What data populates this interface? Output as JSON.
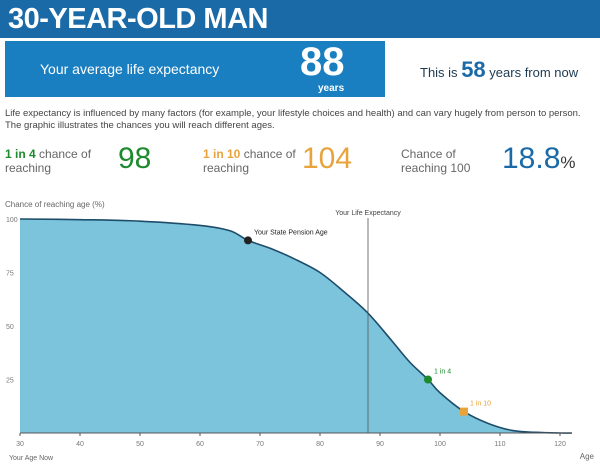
{
  "header": {
    "title": "30-YEAR-OLD MAN"
  },
  "expectancy": {
    "label": "Your average life expectancy",
    "value": "88",
    "unit": "years",
    "from_prefix": "This is",
    "from_value": "58",
    "from_suffix": "years from now"
  },
  "description": "Life expectancy is influenced by many factors (for example, your lifestyle choices and health) and can vary hugely from person to person. The graphic illustrates the chances you will reach different ages.",
  "stats": [
    {
      "highlight": "1 in 4",
      "text": "chance of reaching",
      "value": "98",
      "color": "#1e8a2e"
    },
    {
      "highlight": "1 in 10",
      "text": "chance of reaching",
      "value": "104",
      "color": "#e8a33a"
    },
    {
      "text": "Chance of reaching 100",
      "value": "18.8",
      "unit": "%",
      "color": "#1a6aa8"
    }
  ],
  "chart_data": {
    "type": "area",
    "ylabel": "Chance of reaching age (%)",
    "xlabel": "Age",
    "x_start_label": "Your Age Now",
    "xlim": [
      30,
      122
    ],
    "ylim": [
      0,
      100
    ],
    "xticks": [
      30,
      40,
      50,
      60,
      70,
      80,
      90,
      100,
      110,
      120
    ],
    "yticks": [
      25,
      50,
      75,
      100
    ],
    "x": [
      30,
      40,
      50,
      60,
      65,
      68,
      72,
      76,
      80,
      84,
      88,
      92,
      95,
      98,
      100,
      104,
      108,
      112,
      116,
      120,
      122
    ],
    "y": [
      100,
      99.7,
      99,
      97,
      94.5,
      90,
      86,
      81,
      75,
      66,
      56,
      43,
      33,
      25,
      18.8,
      10,
      4.5,
      1.2,
      0.3,
      0,
      0
    ],
    "vline": {
      "x": 88,
      "label": "Your Life Expectancy"
    },
    "annotations": [
      {
        "x": 68,
        "y": 90,
        "label": "Your State Pension Age",
        "color": "#222"
      },
      {
        "x": 98,
        "y": 25,
        "label": "1 in 4",
        "color": "#1e8a2e"
      },
      {
        "x": 104,
        "y": 10,
        "label": "1 in 10",
        "color": "#e8a33a"
      }
    ],
    "fill": "#7cc4dc",
    "line": "#1d4d6a"
  }
}
